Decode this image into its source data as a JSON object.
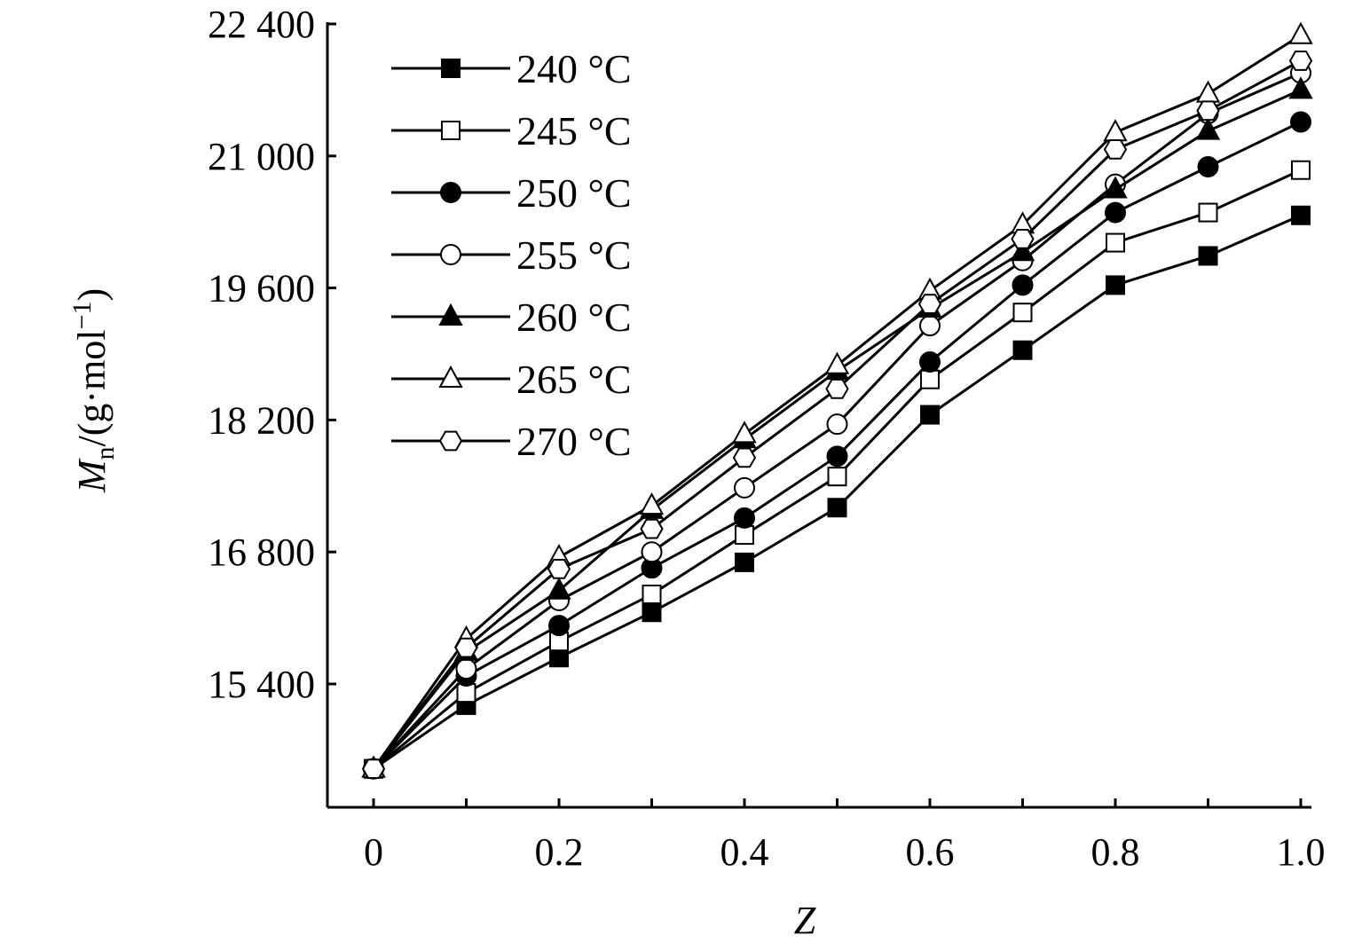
{
  "chart_data": {
    "type": "line",
    "title": "",
    "xlabel": "Z",
    "ylabel": {
      "main": "M",
      "sub": "n",
      "unit_prefix": "/(g·mol",
      "sup": "−1",
      "unit_suffix": ")"
    },
    "xlim": [
      0,
      1.0
    ],
    "ylim": [
      14090,
      22400
    ],
    "xticks": [
      0,
      0.2,
      0.4,
      0.6,
      0.8,
      1.0
    ],
    "xtick_labels": [
      "0",
      "0.2",
      "0.4",
      "0.6",
      "0.8",
      "1.0"
    ],
    "xminor_ticks": [
      0.1,
      0.3,
      0.5,
      0.7,
      0.9
    ],
    "yticks": [
      15400,
      16800,
      18200,
      19600,
      21000,
      22400
    ],
    "ytick_labels": [
      "15 400",
      "16 800",
      "18 200",
      "19 600",
      "21 000",
      "22 400"
    ],
    "grid": false,
    "legend_position": "top-left",
    "x": [
      0,
      0.1,
      0.2,
      0.3,
      0.4,
      0.5,
      0.6,
      0.7,
      0.8,
      0.9,
      1.0
    ],
    "series": [
      {
        "name": "240 °C",
        "marker": "square",
        "filled": true,
        "values": [
          14500,
          15175,
          15680,
          16160,
          16690,
          17270,
          18255,
          18940,
          19630,
          19940,
          20370
        ]
      },
      {
        "name": "245 °C",
        "marker": "square",
        "filled": false,
        "values": [
          14500,
          15305,
          15850,
          16350,
          16980,
          17600,
          18630,
          19340,
          20080,
          20400,
          20850
        ]
      },
      {
        "name": "250 °C",
        "marker": "circle",
        "filled": true,
        "values": [
          14500,
          15485,
          16020,
          16630,
          17160,
          17815,
          18815,
          19630,
          20400,
          20885,
          21360
        ]
      },
      {
        "name": "255 °C",
        "marker": "circle",
        "filled": false,
        "values": [
          14500,
          15560,
          16285,
          16800,
          17480,
          18155,
          19200,
          19890,
          20700,
          21450,
          21880
        ]
      },
      {
        "name": "260 °C",
        "marker": "triangle",
        "filled": true,
        "values": [
          14500,
          15740,
          16390,
          17245,
          17995,
          18720,
          19380,
          19980,
          20645,
          21265,
          21700
        ]
      },
      {
        "name": "265 °C",
        "marker": "triangle",
        "filled": false,
        "values": [
          14500,
          15880,
          16745,
          17290,
          18050,
          18780,
          19570,
          20270,
          21250,
          21660,
          22280
        ]
      },
      {
        "name": "270 °C",
        "marker": "hexagon",
        "filled": false,
        "values": [
          14500,
          15785,
          16620,
          17045,
          17800,
          18530,
          19430,
          20120,
          21070,
          21480,
          22010
        ]
      }
    ]
  }
}
